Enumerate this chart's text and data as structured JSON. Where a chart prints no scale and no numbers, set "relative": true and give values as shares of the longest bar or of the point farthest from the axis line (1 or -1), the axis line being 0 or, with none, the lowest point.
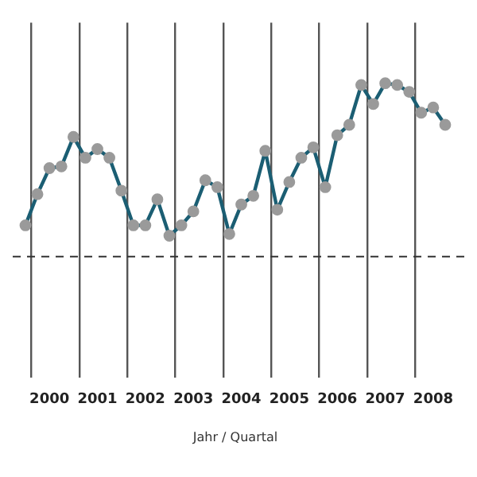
{
  "chart_data": {
    "type": "line",
    "relative": true,
    "xlabel": "Jahr / Quartal",
    "categories": [
      null,
      null,
      "2000",
      null,
      null,
      null,
      "2001",
      null,
      null,
      null,
      "2002",
      null,
      null,
      null,
      "2003",
      null,
      null,
      null,
      "2004",
      null,
      null,
      null,
      "2005",
      null,
      null,
      null,
      "2006",
      null,
      null,
      null,
      "2007",
      null,
      null,
      null,
      "2008",
      null
    ],
    "series": [
      {
        "color": "#1b5e73",
        "values": [
          0.18,
          0.36,
          0.51,
          0.52,
          0.69,
          0.57,
          0.62,
          0.57,
          0.38,
          0.18,
          0.18,
          0.33,
          0.12,
          0.18,
          0.26,
          0.44,
          0.4,
          0.13,
          0.3,
          0.35,
          0.61,
          0.27,
          0.43,
          0.57,
          0.63,
          0.4,
          0.7,
          0.76,
          0.99,
          0.88,
          1,
          0.99,
          0.95,
          0.83,
          0.86,
          0.76
        ]
      }
    ],
    "ref_lines": [
      {
        "axis": "y",
        "value": 0,
        "line_style": "dashed",
        "color": "#333333"
      }
    ],
    "grid": "x",
    "marker": "circle",
    "line_style": "solid",
    "legend": false
  }
}
